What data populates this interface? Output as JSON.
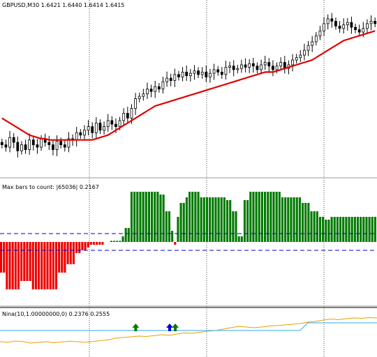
{
  "chart_data": [
    {
      "type": "candlestick",
      "panel": "price",
      "header": "GBPUSD,M30  1.6421 1.6440 1.6414 1.6415",
      "symbol": "GBPUSD",
      "timeframe": "M30",
      "ohlc_last": {
        "open": 1.6421,
        "high": 1.644,
        "low": 1.6414,
        "close": 1.6415
      },
      "grid": true,
      "colors": {
        "bull": "#000000",
        "bear": "#000000",
        "moving_average": "#e00000",
        "background": "#ffffff",
        "grid": "#444444"
      },
      "closes": [
        0.4,
        0.38,
        0.46,
        0.42,
        0.35,
        0.4,
        0.36,
        0.44,
        0.4,
        0.38,
        0.45,
        0.42,
        0.4,
        0.36,
        0.43,
        0.4,
        0.38,
        0.45,
        0.44,
        0.5,
        0.48,
        0.52,
        0.55,
        0.5,
        0.58,
        0.52,
        0.55,
        0.6,
        0.57,
        0.55,
        0.6,
        0.66,
        0.62,
        0.7,
        0.78,
        0.8,
        0.82,
        0.86,
        0.84,
        0.88,
        0.86,
        0.92,
        0.95,
        0.93,
        0.98,
        0.96,
        1.0,
        0.97,
        0.99,
        1.01,
        0.98,
        1.0,
        0.96,
        0.99,
        1.02,
        1.0,
        0.98,
        1.04,
        1.05,
        1.02,
        1.03,
        1.06,
        1.04,
        1.07,
        1.05,
        1.02,
        1.06,
        1.08,
        1.05,
        1.02,
        1.05,
        1.08,
        1.03,
        1.06,
        1.1,
        1.12,
        1.14,
        1.18,
        1.22,
        1.25,
        1.3,
        1.34,
        1.4,
        1.44,
        1.42,
        1.38,
        1.36,
        1.39,
        1.41,
        1.37,
        1.35,
        1.33,
        1.36,
        1.4,
        1.42,
        1.4
      ],
      "moving_average": [
        0.62,
        0.6,
        0.58,
        0.56,
        0.54,
        0.52,
        0.5,
        0.48,
        0.47,
        0.46,
        0.45,
        0.45,
        0.44,
        0.44,
        0.44,
        0.44,
        0.44,
        0.44,
        0.44,
        0.44,
        0.44,
        0.44,
        0.44,
        0.44,
        0.45,
        0.46,
        0.47,
        0.48,
        0.5,
        0.52,
        0.54,
        0.56,
        0.58,
        0.6,
        0.62,
        0.64,
        0.66,
        0.68,
        0.7,
        0.72,
        0.73,
        0.74,
        0.75,
        0.76,
        0.77,
        0.78,
        0.79,
        0.8,
        0.81,
        0.82,
        0.83,
        0.84,
        0.85,
        0.86,
        0.87,
        0.88,
        0.89,
        0.9,
        0.91,
        0.92,
        0.93,
        0.94,
        0.95,
        0.96,
        0.97,
        0.98,
        0.99,
        1.0,
        1.0,
        1.0,
        1.01,
        1.02,
        1.03,
        1.04,
        1.05,
        1.06,
        1.07,
        1.08,
        1.09,
        1.1,
        1.12,
        1.14,
        1.16,
        1.18,
        1.2,
        1.22,
        1.24,
        1.26,
        1.27,
        1.28,
        1.29,
        1.3,
        1.31,
        1.32,
        1.33,
        1.34
      ]
    },
    {
      "type": "histogram",
      "panel": "indicator",
      "header": "Max bars to count: |65036|  0.2167",
      "label": "Max bars to count",
      "max_bars": "65036",
      "value": "0.2167",
      "levels": [
        0.15,
        -0.15
      ],
      "colors": {
        "positive": "#007a00",
        "negative": "#ee0000",
        "level": "#0000cc"
      },
      "values": [
        -0.55,
        -0.55,
        -0.85,
        -0.85,
        -0.85,
        -0.85,
        -0.85,
        -0.7,
        -0.7,
        -0.7,
        -0.7,
        -0.85,
        -0.85,
        -0.85,
        -0.85,
        -0.85,
        -0.85,
        -0.85,
        -0.85,
        -0.85,
        -0.55,
        -0.55,
        -0.55,
        -0.4,
        -0.4,
        -0.4,
        -0.2,
        -0.2,
        -0.15,
        -0.15,
        -0.1,
        -0.05,
        -0.05,
        -0.05,
        -0.05,
        -0.05,
        0.0,
        0.0,
        0.02,
        0.02,
        0.02,
        0.02,
        0.1,
        0.25,
        0.25,
        0.9,
        0.9,
        0.9,
        0.9,
        0.9,
        0.9,
        0.9,
        0.9,
        0.9,
        0.9,
        0.85,
        0.85,
        0.55,
        0.55,
        0.2,
        -0.05,
        0.45,
        0.7,
        0.7,
        0.8,
        0.9,
        0.9,
        0.9,
        0.9,
        0.8,
        0.8,
        0.8,
        0.8,
        0.8,
        0.8,
        0.8,
        0.8,
        0.8,
        0.75,
        0.75,
        0.55,
        0.55,
        0.1,
        0.1,
        0.75,
        0.75,
        0.9,
        0.9,
        0.9,
        0.9,
        0.9,
        0.9,
        0.9,
        0.9,
        0.9,
        0.9,
        0.9,
        0.8,
        0.8,
        0.8,
        0.8,
        0.8,
        0.8,
        0.8,
        0.7,
        0.7,
        0.7,
        0.55,
        0.55,
        0.55,
        0.45,
        0.45,
        0.4,
        0.4,
        0.45,
        0.45,
        0.45,
        0.45,
        0.45,
        0.45,
        0.45,
        0.45,
        0.45,
        0.45,
        0.45,
        0.45,
        0.45,
        0.45,
        0.45,
        0.45
      ]
    },
    {
      "type": "line",
      "panel": "nina",
      "header": "Nina(10,1.00000000,0) 0.2376 0.2555",
      "label": "Nina(10,1.00000000,0)",
      "values_last": [
        "0.2376",
        "0.2555"
      ],
      "colors": {
        "line1": "#e8a000",
        "line2": "#33aaee",
        "arrow_bull": "#007a00",
        "arrow_bear": "#0000dd"
      },
      "series": [
        {
          "values": [
            0.3,
            0.28,
            0.32,
            0.3,
            0.26,
            0.28,
            0.3,
            0.27,
            0.29,
            0.31,
            0.3,
            0.28,
            0.3,
            0.33,
            0.35,
            0.4,
            0.42,
            0.44,
            0.46,
            0.45,
            0.47,
            0.5,
            0.48,
            0.52,
            0.55,
            0.54,
            0.57,
            0.6,
            0.62,
            0.66,
            0.7,
            0.74,
            0.72,
            0.7,
            0.72,
            0.75,
            0.76,
            0.78,
            0.8,
            0.82,
            0.86,
            0.88,
            0.92,
            0.95,
            0.93,
            0.96,
            0.98,
            0.97,
            0.99,
            0.98
          ]
        },
        {
          "values": [
            0.62,
            0.62,
            0.62,
            0.62,
            0.62,
            0.62,
            0.62,
            0.62,
            0.62,
            0.62,
            0.62,
            0.62,
            0.62,
            0.62,
            0.62,
            0.62,
            0.62,
            0.62,
            0.62,
            0.62,
            0.62,
            0.62,
            0.62,
            0.62,
            0.62,
            0.62,
            0.62,
            0.62,
            0.62,
            0.62,
            0.62,
            0.62,
            0.62,
            0.62,
            0.62,
            0.62,
            0.62,
            0.62,
            0.62,
            0.62,
            0.84,
            0.84,
            0.84,
            0.84,
            0.84,
            0.84,
            0.84,
            0.84,
            0.84,
            0.84
          ]
        }
      ],
      "arrows": [
        {
          "at": 0.36,
          "kind": "up",
          "color": "bull"
        },
        {
          "at": 0.45,
          "kind": "up",
          "color": "bear"
        },
        {
          "at": 0.465,
          "kind": "up",
          "color": "bull"
        }
      ]
    }
  ]
}
